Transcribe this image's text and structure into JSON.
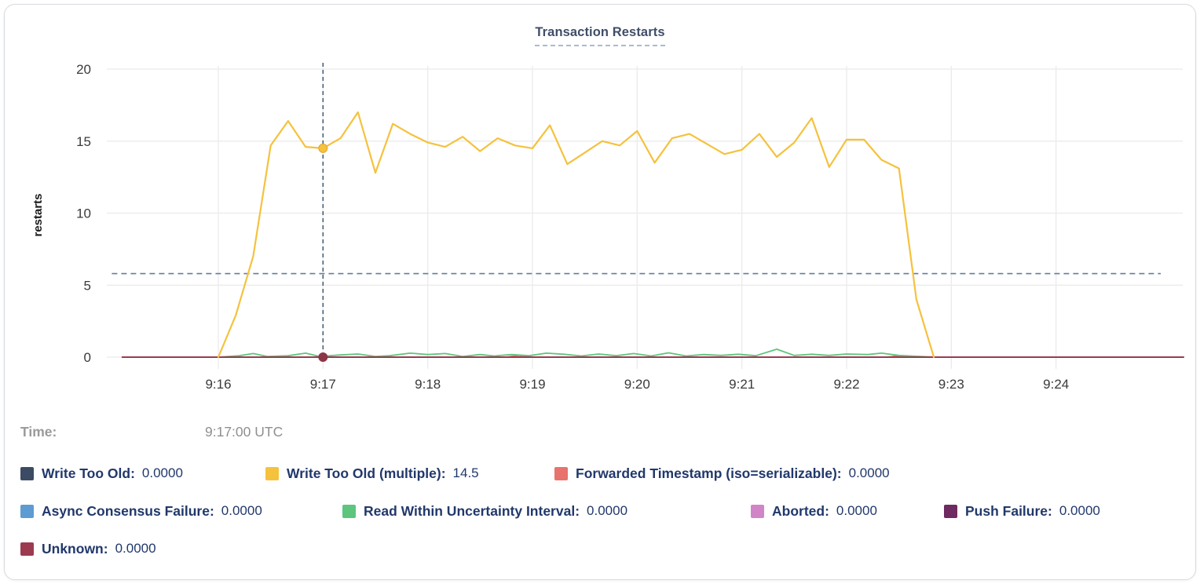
{
  "title": "Transaction Restarts",
  "tooltip": {
    "time_label": "Time:",
    "time_value": "9:17:00 UTC"
  },
  "legend": {
    "rows": [
      [
        {
          "label": "Write Too Old:",
          "value": "0.0000",
          "color": "#3c4a64"
        },
        {
          "label": "Write Too Old (multiple):",
          "value": "14.5",
          "color": "#f5c23d"
        },
        {
          "label": "Forwarded Timestamp (iso=serializable):",
          "value": "0.0000",
          "color": "#e8726c"
        }
      ],
      [
        {
          "label": "Async Consensus Failure:",
          "value": "0.0000",
          "color": "#5d9bd3"
        },
        {
          "label": "Read Within Uncertainty Interval:",
          "value": "0.0000",
          "color": "#5dc57d"
        },
        {
          "label": "Aborted:",
          "value": "0.0000",
          "color": "#d185c6"
        },
        {
          "label": "Push Failure:",
          "value": "0.0000",
          "color": "#6f2a61"
        }
      ],
      [
        {
          "label": "Unknown:",
          "value": "0.0000",
          "color": "#9c3a4f"
        }
      ]
    ]
  },
  "chart_data": {
    "type": "line",
    "title": "Transaction Restarts",
    "xlabel": "",
    "ylabel": "restarts",
    "ylim": [
      0,
      20
    ],
    "y_ticks": [
      0,
      5,
      10,
      15,
      20
    ],
    "x_ticks": [
      {
        "sec": 60,
        "label": "9:16"
      },
      {
        "sec": 120,
        "label": "9:17"
      },
      {
        "sec": 180,
        "label": "9:18"
      },
      {
        "sec": 240,
        "label": "9:19"
      },
      {
        "sec": 300,
        "label": "9:20"
      },
      {
        "sec": 360,
        "label": "9:21"
      },
      {
        "sec": 420,
        "label": "9:22"
      },
      {
        "sec": 480,
        "label": "9:23"
      },
      {
        "sec": 540,
        "label": "9:24"
      }
    ],
    "x_unit": "seconds after 9:15:00 UTC",
    "grid": true,
    "grid_color": "#ebebeb",
    "legend_position": "bottom",
    "threshold_line": {
      "value": 5.8,
      "color": "#607f9e",
      "style": "dashed",
      "x_sec": [
        -1,
        600
      ]
    },
    "cursor": {
      "sec": 120,
      "time": "9:17:00 UTC",
      "color": "#3b5a74"
    },
    "markers": [
      {
        "sec": 120,
        "value": 14.5,
        "color": "#f5c23d",
        "stroke": "#e3a52f"
      },
      {
        "sec": 120,
        "value": 0,
        "color": "#8c3648",
        "stroke": "#8c3648"
      }
    ],
    "series": [
      {
        "name": "Write Too Old",
        "color": "#3c4a64",
        "width": 1.8,
        "points": [
          [
            5,
            0
          ],
          [
            613,
            0
          ]
        ]
      },
      {
        "name": "Async Consensus Failure",
        "color": "#5d9bd3",
        "width": 1.8,
        "points": [
          [
            5,
            0
          ],
          [
            613,
            0
          ]
        ]
      },
      {
        "name": "Aborted",
        "color": "#d185c6",
        "width": 1.8,
        "points": [
          [
            5,
            0
          ],
          [
            613,
            0
          ]
        ]
      },
      {
        "name": "Push Failure",
        "color": "#6f2a61",
        "width": 1.8,
        "points": [
          [
            5,
            0
          ],
          [
            613,
            0
          ]
        ]
      },
      {
        "name": "Forwarded Timestamp (iso=serializable)",
        "color": "#e8726c",
        "width": 1.8,
        "points": [
          [
            5,
            0
          ],
          [
            225,
            0
          ],
          [
            232,
            0.12
          ],
          [
            240,
            0
          ],
          [
            443,
            0
          ],
          [
            450,
            0.1
          ],
          [
            457,
            0
          ],
          [
            613,
            0
          ]
        ]
      },
      {
        "name": "Read Within Uncertainty Interval",
        "color": "#5dc57d",
        "width": 1.8,
        "points": [
          [
            60,
            0
          ],
          [
            72,
            0.1
          ],
          [
            80,
            0.25
          ],
          [
            88,
            0.05
          ],
          [
            100,
            0.1
          ],
          [
            110,
            0.28
          ],
          [
            118,
            0.05
          ],
          [
            130,
            0.15
          ],
          [
            140,
            0.22
          ],
          [
            150,
            0.05
          ],
          [
            158,
            0.1
          ],
          [
            170,
            0.28
          ],
          [
            180,
            0.18
          ],
          [
            190,
            0.25
          ],
          [
            200,
            0.05
          ],
          [
            210,
            0.18
          ],
          [
            218,
            0.08
          ],
          [
            228,
            0.18
          ],
          [
            238,
            0.1
          ],
          [
            248,
            0.28
          ],
          [
            258,
            0.2
          ],
          [
            268,
            0.08
          ],
          [
            278,
            0.22
          ],
          [
            288,
            0.1
          ],
          [
            298,
            0.25
          ],
          [
            308,
            0.08
          ],
          [
            318,
            0.3
          ],
          [
            328,
            0.08
          ],
          [
            338,
            0.18
          ],
          [
            348,
            0.12
          ],
          [
            358,
            0.2
          ],
          [
            368,
            0.1
          ],
          [
            380,
            0.55
          ],
          [
            390,
            0.12
          ],
          [
            400,
            0.2
          ],
          [
            410,
            0.12
          ],
          [
            420,
            0.22
          ],
          [
            432,
            0.18
          ],
          [
            440,
            0.28
          ],
          [
            450,
            0.12
          ],
          [
            460,
            0.06
          ],
          [
            468,
            0.02
          ],
          [
            475,
            0
          ]
        ]
      },
      {
        "name": "Unknown",
        "color": "#9c3a4f",
        "width": 2,
        "points": [
          [
            5,
            0
          ],
          [
            613,
            0
          ]
        ]
      },
      {
        "name": "Write Too Old (multiple)",
        "color": "#f5c23d",
        "width": 2.2,
        "points": [
          [
            60,
            0
          ],
          [
            70,
            2.9
          ],
          [
            80,
            7.0
          ],
          [
            90,
            14.7
          ],
          [
            100,
            16.4
          ],
          [
            110,
            14.6
          ],
          [
            120,
            14.5
          ],
          [
            130,
            15.2
          ],
          [
            140,
            17.0
          ],
          [
            150,
            12.8
          ],
          [
            160,
            16.2
          ],
          [
            170,
            15.5
          ],
          [
            180,
            14.9
          ],
          [
            190,
            14.6
          ],
          [
            200,
            15.3
          ],
          [
            210,
            14.3
          ],
          [
            220,
            15.2
          ],
          [
            230,
            14.7
          ],
          [
            240,
            14.5
          ],
          [
            250,
            16.1
          ],
          [
            260,
            13.4
          ],
          [
            270,
            14.2
          ],
          [
            280,
            15.0
          ],
          [
            290,
            14.7
          ],
          [
            300,
            15.7
          ],
          [
            310,
            13.5
          ],
          [
            320,
            15.2
          ],
          [
            330,
            15.5
          ],
          [
            340,
            14.8
          ],
          [
            350,
            14.1
          ],
          [
            360,
            14.4
          ],
          [
            370,
            15.5
          ],
          [
            380,
            13.9
          ],
          [
            390,
            14.9
          ],
          [
            400,
            16.6
          ],
          [
            410,
            13.2
          ],
          [
            420,
            15.1
          ],
          [
            430,
            15.1
          ],
          [
            440,
            13.7
          ],
          [
            450,
            13.1
          ],
          [
            460,
            4.0
          ],
          [
            470,
            0
          ]
        ]
      }
    ]
  }
}
